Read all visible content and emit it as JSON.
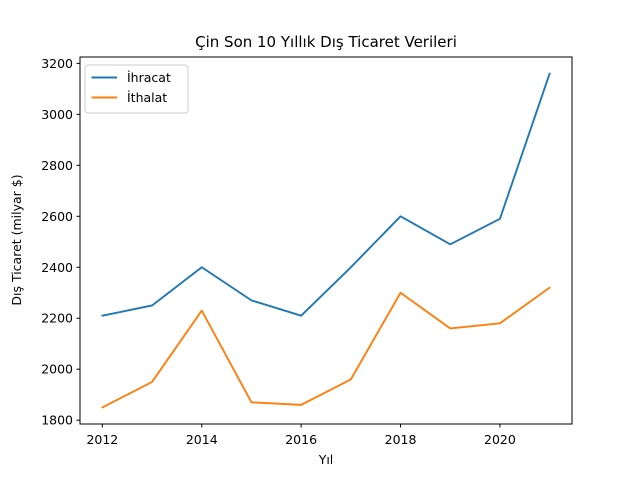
{
  "chart_data": {
    "type": "line",
    "title": "Çin Son 10 Yıllık Dış Ticaret Verileri",
    "xlabel": "Yıl",
    "ylabel": "Dış Ticaret (milyar $)",
    "x": [
      2012,
      2013,
      2014,
      2015,
      2016,
      2017,
      2018,
      2019,
      2020,
      2021
    ],
    "series": [
      {
        "name": "İhracat",
        "color": "#1f77b4",
        "values": [
          2210,
          2250,
          2400,
          2270,
          2210,
          2400,
          2600,
          2490,
          2590,
          3160
        ]
      },
      {
        "name": "İthalat",
        "color": "#ff7f0e",
        "values": [
          1850,
          1950,
          2230,
          1870,
          1860,
          1960,
          2300,
          2160,
          2180,
          2320
        ]
      }
    ],
    "xticks": [
      2012,
      2014,
      2016,
      2018,
      2020
    ],
    "yticks": [
      1800,
      2000,
      2200,
      2400,
      2600,
      2800,
      3000,
      3200
    ],
    "xlim": [
      2011.55,
      2021.45
    ],
    "ylim": [
      1785,
      3225
    ],
    "grid": false,
    "legend_position": "upper left",
    "colors": {
      "axis": "#000000",
      "text": "#000000",
      "legend_border": "#cccccc",
      "background": "#ffffff"
    }
  }
}
